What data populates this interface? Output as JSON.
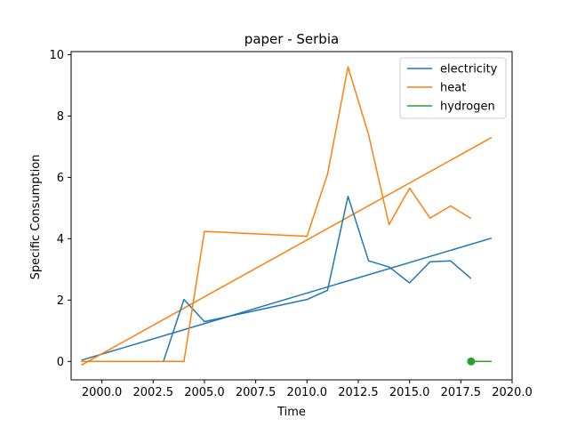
{
  "chart_data": {
    "type": "line",
    "title": "paper - Serbia",
    "xlabel": "Time",
    "ylabel": "Specific Consumption",
    "xlim": [
      1998.5,
      2020.0
    ],
    "ylim": [
      -0.6,
      10.1
    ],
    "xticks": [
      2000.0,
      2002.5,
      2005.0,
      2007.5,
      2010.0,
      2012.5,
      2015.0,
      2017.5,
      2020.0
    ],
    "xtick_labels": [
      "2000.0",
      "2002.5",
      "2005.0",
      "2007.5",
      "2010.0",
      "2012.5",
      "2015.0",
      "2017.5",
      "2020.0"
    ],
    "yticks": [
      0,
      2,
      4,
      6,
      8,
      10
    ],
    "ytick_labels": [
      "0",
      "2",
      "4",
      "6",
      "8",
      "10"
    ],
    "grid": false,
    "legend_position": "top-right",
    "series": [
      {
        "name": "electricity",
        "color": "#1f77b4",
        "x": [
          1999,
          2000,
          2001,
          2002,
          2003,
          2004,
          2005,
          2010,
          2011,
          2012,
          2013,
          2014,
          2015,
          2016,
          2017,
          2018
        ],
        "y": [
          0,
          0,
          0,
          0,
          0,
          2.02,
          1.3,
          2.02,
          2.32,
          5.38,
          3.28,
          3.08,
          2.56,
          3.25,
          3.28,
          2.7
        ]
      },
      {
        "name": "heat",
        "color": "#ff7f0e",
        "x": [
          1999,
          2000,
          2001,
          2002,
          2003,
          2004,
          2005,
          2010,
          2011,
          2012,
          2013,
          2014,
          2015,
          2016,
          2017,
          2018
        ],
        "y": [
          0,
          0,
          0,
          0,
          0,
          0,
          4.24,
          4.08,
          6.1,
          9.6,
          7.4,
          4.46,
          5.65,
          4.67,
          5.07,
          4.66
        ]
      },
      {
        "name": "hydrogen",
        "color": "#2ca02c",
        "x": [
          2018,
          2019
        ],
        "y": [
          0,
          0
        ],
        "marker_at": [
          2018,
          0
        ]
      }
    ],
    "trend_lines": [
      {
        "series": "electricity",
        "color": "#1f77b4",
        "x": [
          1999,
          2019
        ],
        "y": [
          0.04,
          4.02
        ]
      },
      {
        "series": "heat",
        "color": "#ff7f0e",
        "x": [
          1999,
          2019
        ],
        "y": [
          -0.12,
          7.3
        ]
      }
    ]
  }
}
